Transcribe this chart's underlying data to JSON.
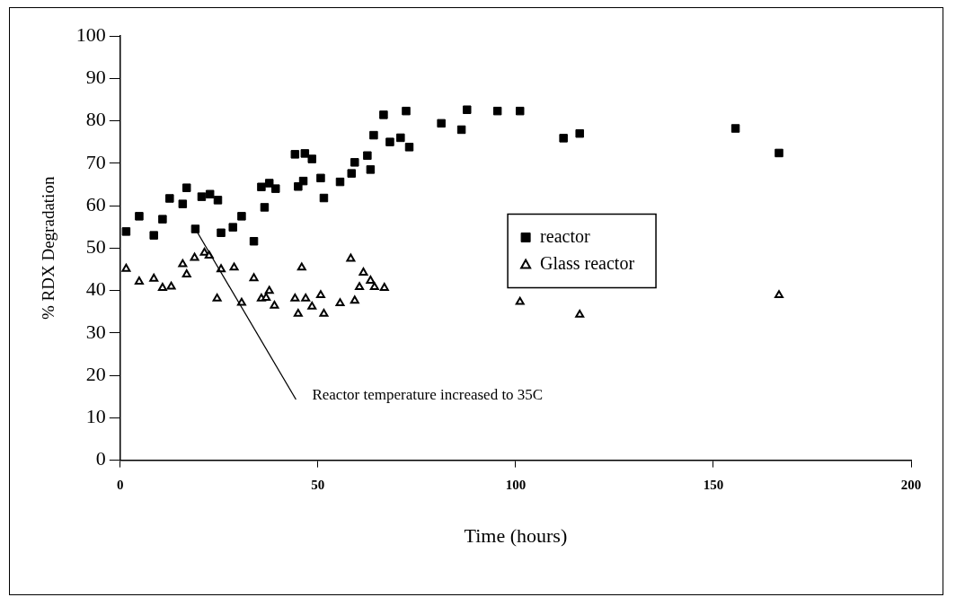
{
  "chart_data": {
    "type": "scatter",
    "xlabel": "Time (hours)",
    "ylabel": "% RDX Degradation",
    "xlim": [
      0,
      200
    ],
    "xticks": [
      0,
      50,
      100,
      150,
      200
    ],
    "ylim": [
      0,
      100
    ],
    "yticks": [
      0,
      10,
      20,
      30,
      40,
      50,
      60,
      70,
      80,
      90,
      100
    ],
    "grid": false,
    "legend": "right",
    "annotations": [
      {
        "text": "Reactor temperature increased to 35C",
        "x": 19,
        "y": 54.5
      }
    ],
    "series": [
      {
        "name": "reactor",
        "color": "#000000",
        "marker": "square",
        "x": [
          1.5,
          4.8,
          8.5,
          10.7,
          12.5,
          15.8,
          16.8,
          19,
          20.6,
          22.7,
          24.7,
          25.5,
          28.5,
          30.7,
          33.8,
          35.7,
          36.5,
          37.7,
          39.3,
          44.2,
          45,
          46.3,
          46.7,
          48.5,
          50.7,
          51.5,
          55.6,
          58.5,
          59.3,
          62.5,
          63.3,
          64.1,
          66.6,
          68.2,
          70.9,
          72.3,
          73.1,
          81.2,
          86.3,
          87.7,
          95.4,
          101.1,
          112.1,
          116.2,
          155.6,
          166.6
        ],
        "values": [
          53.9,
          57.5,
          53,
          56.8,
          61.7,
          60.4,
          64.2,
          54.5,
          62.1,
          62.7,
          61.3,
          53.6,
          54.9,
          57.5,
          51.6,
          64.4,
          59.6,
          65.3,
          64,
          72.1,
          64.5,
          65.8,
          72.3,
          71,
          66.5,
          61.8,
          65.6,
          67.6,
          70.2,
          71.8,
          68.5,
          76.6,
          81.4,
          75,
          76,
          82.3,
          73.8,
          79.4,
          77.9,
          82.6,
          82.3,
          82.3,
          75.9,
          77,
          78.2,
          72.4
        ]
      },
      {
        "name": "Glass reactor",
        "color": "#000000",
        "marker": "triangle",
        "x": [
          1.5,
          4.8,
          8.5,
          10.7,
          12.9,
          15.8,
          16.8,
          18.8,
          21.3,
          22.5,
          24.5,
          25.5,
          28.8,
          30.7,
          33.8,
          35.7,
          36.9,
          37.7,
          39,
          44.2,
          45,
          45.9,
          46.9,
          48.5,
          50.7,
          51.5,
          55.6,
          58.3,
          59.3,
          60.5,
          61.5,
          63.3,
          64.3,
          66.8,
          101.1,
          116.2,
          166.6
        ],
        "values": [
          45.1,
          42.1,
          42.8,
          40.6,
          40.9,
          46.2,
          43.8,
          47.7,
          48.9,
          48.2,
          38.1,
          45,
          45.4,
          37.1,
          42.9,
          38.1,
          38.3,
          39.9,
          36.4,
          38.1,
          34.5,
          45.4,
          38.1,
          36.2,
          38.9,
          34.5,
          37,
          47.5,
          37.6,
          40.8,
          44.2,
          42.3,
          40.8,
          40.6,
          37.3,
          34.3,
          38.9
        ]
      }
    ]
  }
}
